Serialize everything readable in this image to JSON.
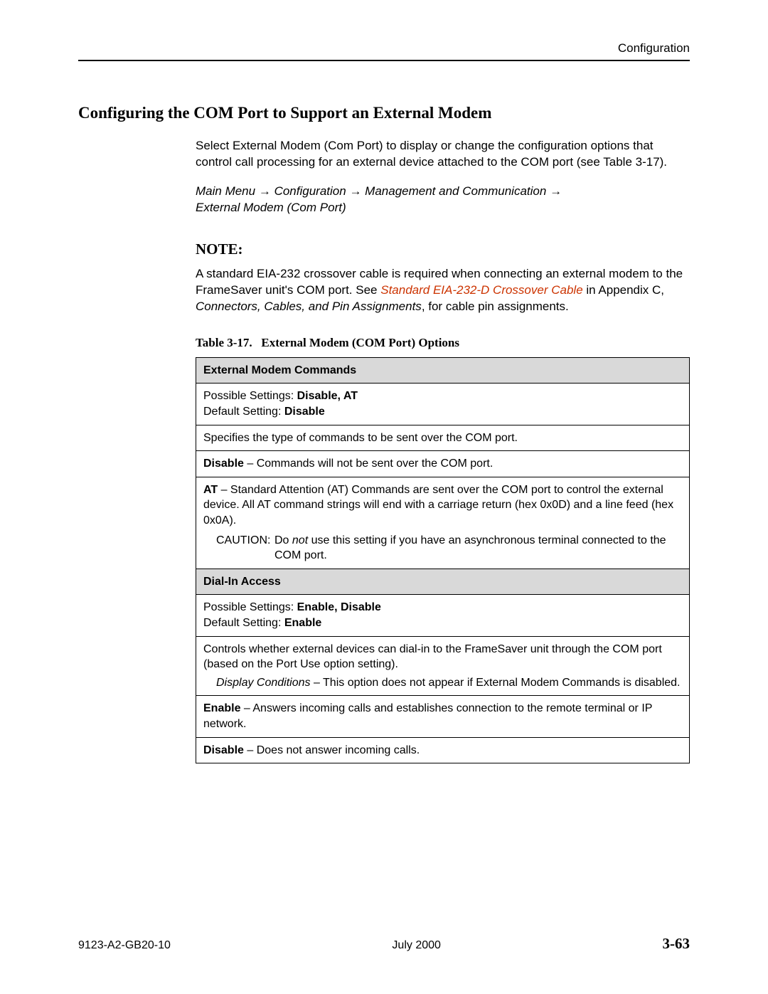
{
  "header": {
    "chapter": "Configuration"
  },
  "section": {
    "title": "Configuring the COM Port to Support an External Modem"
  },
  "intro": {
    "text": "Select External Modem (Com Port) to display or change the configuration options that control call processing for an external device attached to the COM port (see Table 3-17)."
  },
  "menu_path": {
    "seg1": "Main Menu",
    "seg2": "Configuration",
    "seg3": "Management and Communication",
    "seg4": "External Modem (Com Port)",
    "arrow": "→"
  },
  "note": {
    "heading": "NOTE:",
    "pre_link": "A standard EIA-232 crossover cable is required when connecting an external modem to the FrameSaver unit's COM port. See ",
    "link": "Standard EIA-232-D Crossover Cable",
    "post_link_1": " in Appendix C, ",
    "appendix_title": "Connectors, Cables, and Pin Assignments",
    "post_link_2": ", for cable pin assignments."
  },
  "table": {
    "caption_prefix": "Table 3-17.",
    "caption_title": "External Modem (COM Port) Options",
    "row1_header": "External Modem Commands",
    "row2": {
      "ps_label": "Possible Settings: ",
      "ps_value": "Disable, AT",
      "ds_label": "Default Setting: ",
      "ds_value": "Disable"
    },
    "row3": "Specifies the type of commands to be sent over the COM port.",
    "row4": {
      "label": "Disable",
      "text": " – Commands will not be sent over the COM port."
    },
    "row5": {
      "label": "AT",
      "text": " – Standard Attention (AT) Commands are sent over the COM port to control the external device. All AT command strings will end with a carriage return (hex 0x0D) and a line feed (hex 0x0A).",
      "caution_label": "CAUTION:",
      "caution_pre": "Do ",
      "caution_not": "not",
      "caution_post": " use this setting if you have an asynchronous terminal connected to the COM port."
    },
    "row6_header": "Dial-In Access",
    "row7": {
      "ps_label": "Possible Settings: ",
      "ps_value": "Enable, Disable",
      "ds_label": "Default Setting: ",
      "ds_value": "Enable"
    },
    "row8": {
      "text": "Controls whether external devices can dial-in to the FrameSaver unit through the COM port (based on the Port Use option setting).",
      "dc_label": "Display Conditions",
      "dc_text": " – This option does not appear if External Modem Commands is disabled."
    },
    "row9": {
      "label": "Enable",
      "text": " – Answers incoming calls and establishes connection to the remote terminal or IP network."
    },
    "row10": {
      "label": "Disable",
      "text": " – Does not answer incoming calls."
    }
  },
  "footer": {
    "docnum": "9123-A2-GB20-10",
    "date": "July 2000",
    "page": "3-63"
  }
}
